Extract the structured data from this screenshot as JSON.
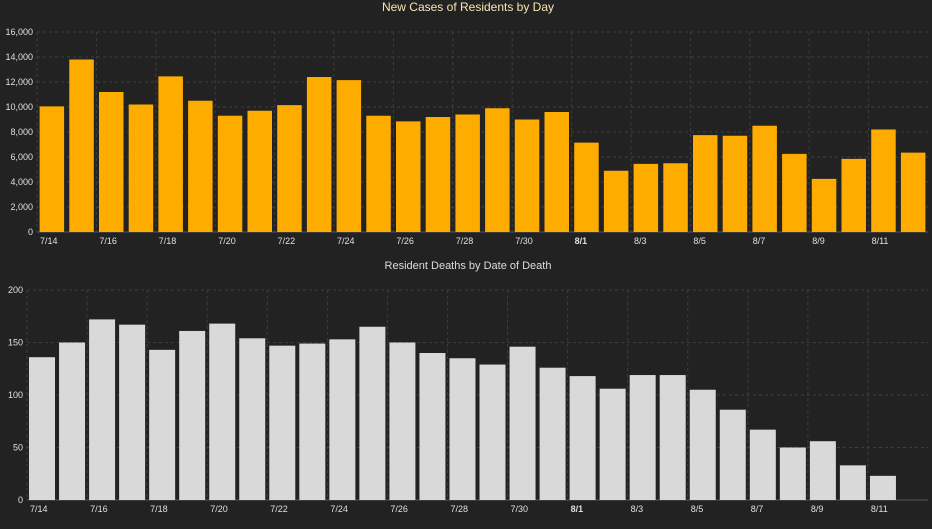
{
  "chart_data": [
    {
      "type": "bar",
      "title": "New Cases of Residents by Day",
      "title_color": "#f5e6b0",
      "bar_color": "#ffac00",
      "grid": true,
      "ylim": [
        0,
        16000
      ],
      "yticks": [
        0,
        2000,
        4000,
        6000,
        8000,
        10000,
        12000,
        14000,
        16000
      ],
      "ytick_labels": [
        "0",
        "2,000",
        "4,000",
        "6,000",
        "8,000",
        "10,000",
        "12,000",
        "14,000",
        "16,000"
      ],
      "categories": [
        "7/14",
        "7/15",
        "7/16",
        "7/17",
        "7/18",
        "7/19",
        "7/20",
        "7/21",
        "7/22",
        "7/23",
        "7/24",
        "7/25",
        "7/26",
        "7/27",
        "7/28",
        "7/29",
        "7/30",
        "7/31",
        "8/1",
        "8/2",
        "8/3",
        "8/4",
        "8/5",
        "8/6",
        "8/7",
        "8/8",
        "8/9",
        "8/10",
        "8/11",
        "8/12"
      ],
      "xtick_labels": [
        "7/14",
        "7/16",
        "7/18",
        "7/20",
        "7/22",
        "7/24",
        "7/26",
        "7/28",
        "7/30",
        "8/1",
        "8/3",
        "8/5",
        "8/7",
        "8/9",
        "8/11"
      ],
      "values": [
        10050,
        13800,
        11200,
        10200,
        12450,
        10500,
        9300,
        9700,
        10150,
        12400,
        12150,
        9300,
        8850,
        9200,
        9400,
        9900,
        9000,
        9600,
        7150,
        4900,
        5450,
        5500,
        7750,
        7700,
        8500,
        6250,
        4250,
        5850,
        8200,
        6350
      ]
    },
    {
      "type": "bar",
      "title": "Resident Deaths by Date of Death",
      "title_color": "#dcdcdc",
      "bar_color": "#d9d9d9",
      "grid": true,
      "ylim": [
        0,
        200
      ],
      "yticks": [
        0,
        50,
        100,
        150,
        200
      ],
      "ytick_labels": [
        "0",
        "50",
        "100",
        "150",
        "200"
      ],
      "categories": [
        "7/14",
        "7/15",
        "7/16",
        "7/17",
        "7/18",
        "7/19",
        "7/20",
        "7/21",
        "7/22",
        "7/23",
        "7/24",
        "7/25",
        "7/26",
        "7/27",
        "7/28",
        "7/29",
        "7/30",
        "7/31",
        "8/1",
        "8/2",
        "8/3",
        "8/4",
        "8/5",
        "8/6",
        "8/7",
        "8/8",
        "8/9",
        "8/10",
        "8/11",
        "8/12"
      ],
      "xtick_labels": [
        "7/14",
        "7/16",
        "7/18",
        "7/20",
        "7/22",
        "7/24",
        "7/26",
        "7/28",
        "7/30",
        "8/1",
        "8/3",
        "8/5",
        "8/7",
        "8/9",
        "8/11"
      ],
      "values": [
        136,
        150,
        172,
        167,
        143,
        161,
        168,
        154,
        147,
        149,
        153,
        165,
        150,
        140,
        135,
        129,
        146,
        126,
        118,
        106,
        119,
        119,
        105,
        86,
        67,
        50,
        56,
        33,
        23,
        null
      ]
    }
  ],
  "style": {
    "background": "#222222",
    "axis_label_color": "#e0e0e0",
    "grid_color": "#3e3e3e"
  }
}
